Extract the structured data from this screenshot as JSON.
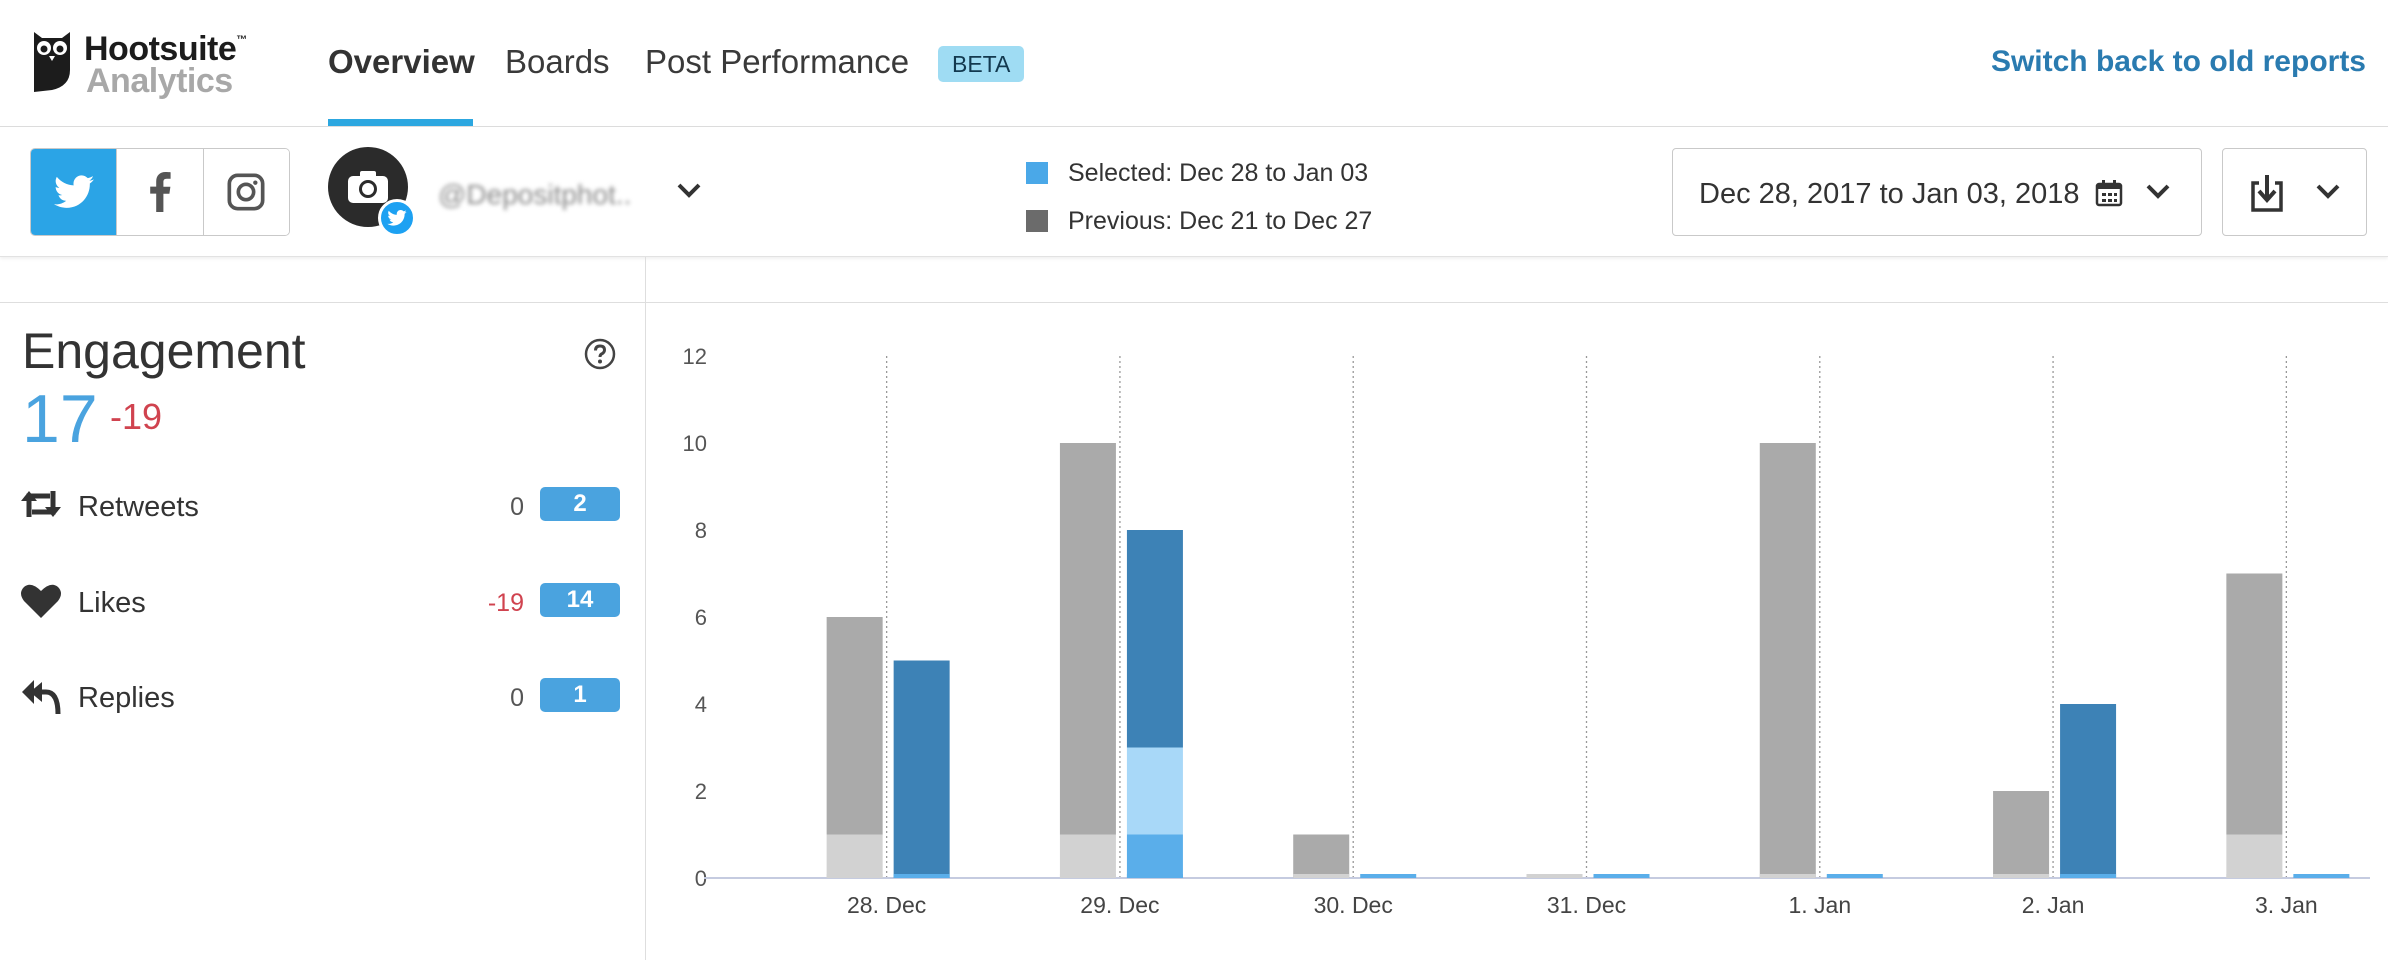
{
  "brand": {
    "name": "Hootsuite",
    "tm": "™",
    "product": "Analytics"
  },
  "nav": {
    "tabs": [
      {
        "label": "Overview",
        "active": true
      },
      {
        "label": "Boards",
        "active": false
      },
      {
        "label": "Post Performance",
        "active": false
      }
    ],
    "beta_badge": "BETA",
    "switch_link": "Switch back to old reports"
  },
  "toolbar": {
    "networks": [
      {
        "name": "twitter-icon",
        "active": true
      },
      {
        "name": "facebook-icon",
        "active": false
      },
      {
        "name": "instagram-icon",
        "active": false
      }
    ],
    "account_name": "@Depositphot..",
    "legend": {
      "selected": "Selected: Dec 28 to Jan 03",
      "previous": "Previous: Dec 21 to Dec 27"
    },
    "date_range": "Dec 28, 2017 to Jan 03, 2018"
  },
  "metrics": {
    "title": "Engagement",
    "value": "17",
    "delta": "-19",
    "items": [
      {
        "label": "Retweets",
        "delta": "0",
        "value": "2",
        "icon": "retweet-icon"
      },
      {
        "label": "Likes",
        "delta": "-19",
        "value": "14",
        "icon": "heart-icon"
      },
      {
        "label": "Replies",
        "delta": "0",
        "value": "1",
        "icon": "reply-icon"
      }
    ]
  },
  "colors": {
    "accent": "#2ca7e0",
    "selected_legend": "#4aa8e8",
    "previous_legend": "#6b6b6b",
    "prev_base": "#d2d2d2",
    "prev_mid": "#aaaaaa",
    "sel_likes": "#3d82b6",
    "sel_retweets": "#a8d8f8",
    "sel_replies": "#5aaeea",
    "negative": "#d0434f"
  },
  "chart_data": {
    "type": "bar",
    "stacked": true,
    "categories": [
      "28. Dec",
      "29. Dec",
      "30. Dec",
      "31. Dec",
      "1. Jan",
      "2. Jan",
      "3. Jan"
    ],
    "ylim": [
      0,
      12
    ],
    "yticks": [
      0,
      2,
      4,
      6,
      8,
      10,
      12
    ],
    "groups": [
      {
        "name": "previous",
        "stacks": [
          [
            1,
            5
          ],
          [
            1,
            9
          ],
          [
            0,
            1
          ],
          [
            0,
            0
          ],
          [
            0,
            10
          ],
          [
            0,
            2
          ],
          [
            1,
            6
          ]
        ]
      },
      {
        "name": "selected",
        "stacks": [
          [
            0,
            0,
            5
          ],
          [
            1,
            2,
            5
          ],
          [
            0,
            0,
            0
          ],
          [
            0,
            0,
            0
          ],
          [
            0,
            0,
            0
          ],
          [
            0,
            0,
            4
          ],
          [
            0,
            0,
            0
          ]
        ]
      }
    ]
  }
}
